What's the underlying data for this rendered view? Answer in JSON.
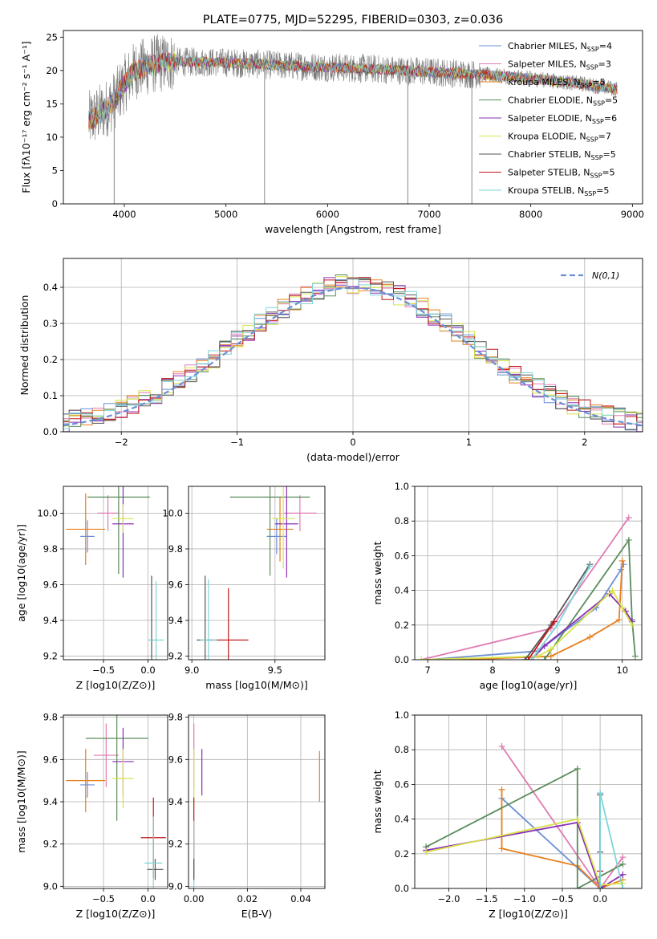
{
  "title": "PLATE=0775, MJD=52295, FIBERID=0303, z=0.036",
  "colors": {
    "Chabrier MILES": "#6a8fd6",
    "Salpeter MILES": "#e07bb3",
    "Kroupa MILES": "#e6801f",
    "Chabrier ELODIE": "#5a8c5a",
    "Salpeter ELODIE": "#8a2eb5",
    "Kroupa ELODIE": "#d8e34a",
    "Chabrier STELIB": "#555555",
    "Salpeter STELIB": "#c01818",
    "Kroupa STELIB": "#7fd4d8",
    "normal": "#6a8fd6"
  },
  "legend_spectrum": [
    {
      "label": "Chabrier MILES, N",
      "sub": "SSP",
      "tail": "=4"
    },
    {
      "label": "Salpeter MILES, N",
      "sub": "SSP",
      "tail": "=3"
    },
    {
      "label": "Kroupa MILES, N",
      "sub": "SSP",
      "tail": "=5"
    },
    {
      "label": "Chabrier ELODIE, N",
      "sub": "SSP",
      "tail": "=5"
    },
    {
      "label": "Salpeter ELODIE, N",
      "sub": "SSP",
      "tail": "=6"
    },
    {
      "label": "Kroupa ELODIE, N",
      "sub": "SSP",
      "tail": "=7"
    },
    {
      "label": "Chabrier STELIB, N",
      "sub": "SSP",
      "tail": "=5"
    },
    {
      "label": "Salpeter STELIB, N",
      "sub": "SSP",
      "tail": "=5"
    },
    {
      "label": "Kroupa STELIB, N",
      "sub": "SSP",
      "tail": "=5"
    }
  ],
  "chart_data": [
    {
      "type": "line",
      "panel": "spectrum",
      "xlabel": "wavelength [Angstrom, rest frame]",
      "ylabel": "Flux [fλ10⁻¹⁷ erg cm⁻² s⁻¹ A⁻¹]",
      "xlim": [
        3400,
        9100
      ],
      "ylim": [
        0,
        26
      ],
      "xticks": [
        4000,
        5000,
        6000,
        7000,
        8000,
        9000
      ],
      "yticks": [
        0,
        5,
        10,
        15,
        20,
        25
      ],
      "continuum": [
        [
          3650,
          12.5
        ],
        [
          3800,
          14
        ],
        [
          3900,
          15.5
        ],
        [
          4000,
          18
        ],
        [
          4100,
          20
        ],
        [
          4300,
          21
        ],
        [
          4500,
          21.3
        ],
        [
          5000,
          21.2
        ],
        [
          5500,
          20.8
        ],
        [
          6000,
          20.5
        ],
        [
          6500,
          20.2
        ],
        [
          7000,
          19.8
        ],
        [
          7500,
          19.4
        ],
        [
          8000,
          18.8
        ],
        [
          8500,
          18.0
        ],
        [
          8850,
          17.2
        ]
      ],
      "dropouts": [
        [
          3900,
          0
        ],
        [
          5380,
          0
        ],
        [
          6790,
          0
        ],
        [
          7420,
          0
        ]
      ]
    },
    {
      "type": "bar",
      "panel": "residual-histogram",
      "xlabel": "(data-model)/error",
      "ylabel": "Normed distribution",
      "xlim": [
        -2.5,
        2.5
      ],
      "ylim": [
        0,
        0.48
      ],
      "xticks": [
        -2,
        -1,
        0,
        1,
        2
      ],
      "yticks": [
        0.0,
        0.1,
        0.2,
        0.3,
        0.4
      ],
      "bin_width": 0.1,
      "legend": "N(0,1)"
    },
    {
      "type": "scatter",
      "panel": "age-vs-Z",
      "xlabel": "Z [log10(Z/Z⊙)]",
      "ylabel": "age [log10(age/yr)]",
      "xlim": [
        -0.95,
        0.22
      ],
      "ylim": [
        9.18,
        10.15
      ],
      "xticks": [
        -0.5,
        0.0
      ],
      "yticks": [
        9.2,
        9.4,
        9.6,
        9.8,
        10.0
      ],
      "points": [
        {
          "model": "Chabrier MILES",
          "x": -0.68,
          "y": 9.87,
          "xerr": 0.08,
          "yerr": 0.09
        },
        {
          "model": "Kroupa MILES",
          "x": -0.7,
          "y": 9.91,
          "xerr": 0.22,
          "yerr": 0.2
        },
        {
          "model": "Salpeter MILES",
          "x": -0.45,
          "y": 10.0,
          "xerr": 0.12,
          "yerr": 0.1
        },
        {
          "model": "Chabrier ELODIE",
          "x": -0.33,
          "y": 10.09,
          "xerr": 0.35,
          "yerr": 0.43
        },
        {
          "model": "Salpeter ELODIE",
          "x": -0.28,
          "y": 9.94,
          "xerr": 0.12,
          "yerr": 0.3
        },
        {
          "model": "Kroupa ELODIE",
          "x": -0.28,
          "y": 9.97,
          "xerr": 0.12,
          "yerr": 0.08
        },
        {
          "model": "Chabrier STELIB",
          "x": 0.04,
          "y": 9.29,
          "xerr": 0.02,
          "yerr": 0.36
        },
        {
          "model": "Kroupa STELIB",
          "x": 0.09,
          "y": 9.29,
          "xerr": 0.09,
          "yerr": 0.33
        }
      ]
    },
    {
      "type": "scatter",
      "panel": "age-vs-mass",
      "xlabel": "mass [log10(M/M⊙)]",
      "ylabel": "",
      "xlim": [
        8.98,
        9.8
      ],
      "ylim": [
        9.18,
        10.15
      ],
      "xticks": [
        9.0,
        9.5
      ],
      "yticks": [
        9.2,
        9.4,
        9.6,
        9.8,
        10.0
      ],
      "points": [
        {
          "model": "Chabrier MILES",
          "x": 9.51,
          "y": 9.87,
          "xerr": 0.06,
          "yerr": 0.1
        },
        {
          "model": "Salpeter MILES",
          "x": 9.65,
          "y": 10.0,
          "xerr": 0.1,
          "yerr": 0.1
        },
        {
          "model": "Kroupa MILES",
          "x": 9.53,
          "y": 9.91,
          "xerr": 0.08,
          "yerr": 0.18
        },
        {
          "model": "Chabrier ELODIE",
          "x": 9.47,
          "y": 10.09,
          "xerr": 0.24,
          "yerr": 0.44
        },
        {
          "model": "Salpeter ELODIE",
          "x": 9.57,
          "y": 9.94,
          "xerr": 0.07,
          "yerr": 0.3
        },
        {
          "model": "Kroupa ELODIE",
          "x": 9.55,
          "y": 9.97,
          "xerr": 0.07,
          "yerr": 0.28
        },
        {
          "model": "Chabrier STELIB",
          "x": 9.08,
          "y": 9.29,
          "xerr": 0.05,
          "yerr": 0.36
        },
        {
          "model": "Salpeter STELIB",
          "x": 9.22,
          "y": 9.29,
          "xerr": 0.12,
          "yerr": 0.29
        },
        {
          "model": "Kroupa STELIB",
          "x": 9.1,
          "y": 9.29,
          "xerr": 0.05,
          "yerr": 0.34
        }
      ]
    },
    {
      "type": "line",
      "panel": "weight-vs-age",
      "xlabel": "age [log10(age/yr)]",
      "ylabel": "mass weight",
      "xlim": [
        6.8,
        10.3
      ],
      "ylim": [
        0,
        1.0
      ],
      "xticks": [
        7,
        8,
        9,
        10
      ],
      "yticks": [
        0.0,
        0.2,
        0.4,
        0.6,
        0.8,
        1.0
      ],
      "series": [
        {
          "model": "Chabrier MILES",
          "x": [
            7.0,
            8.7,
            9.6,
            9.98,
            10.02
          ],
          "y": [
            0.0,
            0.05,
            0.3,
            0.52,
            0.55
          ]
        },
        {
          "model": "Salpeter MILES",
          "x": [
            6.9,
            8.9,
            10.1
          ],
          "y": [
            0.0,
            0.18,
            0.82
          ]
        },
        {
          "model": "Kroupa MILES",
          "x": [
            7.5,
            8.9,
            9.5,
            9.95,
            10.0
          ],
          "y": [
            0.0,
            0.02,
            0.13,
            0.23,
            0.57
          ]
        },
        {
          "model": "Chabrier ELODIE",
          "x": [
            8.8,
            10.1,
            10.15,
            10.2
          ],
          "y": [
            0.0,
            0.69,
            0.23,
            0.02
          ]
        },
        {
          "model": "Salpeter ELODIE",
          "x": [
            8.6,
            8.8,
            9.8,
            10.05,
            10.15
          ],
          "y": [
            0.0,
            0.08,
            0.38,
            0.28,
            0.22
          ]
        },
        {
          "model": "Kroupa ELODIE",
          "x": [
            6.9,
            8.7,
            8.9,
            9.85,
            10.0,
            10.15
          ],
          "y": [
            0.0,
            0.02,
            0.06,
            0.4,
            0.3,
            0.2
          ]
        },
        {
          "model": "Chabrier STELIB",
          "x": [
            8.5,
            8.9,
            9.5
          ],
          "y": [
            0.0,
            0.2,
            0.55
          ]
        },
        {
          "model": "Salpeter STELIB",
          "x": [
            8.55,
            8.95
          ],
          "y": [
            0.0,
            0.22
          ]
        },
        {
          "model": "Kroupa STELIB",
          "x": [
            8.6,
            9.0,
            9.5
          ],
          "y": [
            0.0,
            0.2,
            0.54
          ]
        }
      ]
    },
    {
      "type": "scatter",
      "panel": "mass-vs-Z",
      "xlabel": "Z [log10(Z/Z⊙)]",
      "ylabel": "mass [log10(M/M⊙)]",
      "xlim": [
        -0.95,
        0.22
      ],
      "ylim": [
        8.99,
        9.81
      ],
      "xticks": [
        -0.5,
        0.0
      ],
      "yticks": [
        9.0,
        9.2,
        9.4,
        9.6,
        9.8
      ],
      "points": [
        {
          "model": "Chabrier MILES",
          "x": -0.68,
          "y": 9.48,
          "xerr": 0.08,
          "yerr": 0.06
        },
        {
          "model": "Kroupa MILES",
          "x": -0.7,
          "y": 9.5,
          "xerr": 0.22,
          "yerr": 0.15
        },
        {
          "model": "Salpeter MILES",
          "x": -0.47,
          "y": 9.62,
          "xerr": 0.14,
          "yerr": 0.15
        },
        {
          "model": "Chabrier ELODIE",
          "x": -0.35,
          "y": 9.7,
          "xerr": 0.35,
          "yerr": 0.39
        },
        {
          "model": "Salpeter ELODIE",
          "x": -0.28,
          "y": 9.59,
          "xerr": 0.12,
          "yerr": 0.16
        },
        {
          "model": "Kroupa ELODIE",
          "x": -0.28,
          "y": 9.51,
          "xerr": 0.12,
          "yerr": 0.14
        },
        {
          "model": "Chabrier STELIB",
          "x": 0.08,
          "y": 9.08,
          "xerr": 0.09,
          "yerr": 0.05
        },
        {
          "model": "Salpeter STELIB",
          "x": 0.06,
          "y": 9.23,
          "xerr": 0.14,
          "yerr": 0.19
        },
        {
          "model": "Kroupa STELIB",
          "x": 0.06,
          "y": 9.11,
          "xerr": 0.1,
          "yerr": 0.22
        }
      ]
    },
    {
      "type": "scatter",
      "panel": "mass-vs-EBV",
      "xlabel": "E(B-V)",
      "ylabel": "",
      "xlim": [
        -0.002,
        0.049
      ],
      "ylim": [
        8.99,
        9.81
      ],
      "xticks": [
        0.0,
        0.02,
        0.04
      ],
      "yticks": [
        9.0,
        9.2,
        9.4,
        9.6,
        9.8
      ],
      "points": [
        {
          "model": "Salpeter MILES",
          "x": 0.0,
          "y": 9.62,
          "yerr": 0.15
        },
        {
          "model": "Kroupa ELODIE",
          "x": 0.0,
          "y": 9.51,
          "yerr": 0.14
        },
        {
          "model": "Salpeter ELODIE",
          "x": 0.003,
          "y": 9.54,
          "yerr": 0.11
        },
        {
          "model": "Kroupa MILES",
          "x": 0.047,
          "y": 9.52,
          "yerr": 0.12
        },
        {
          "model": "Salpeter STELIB",
          "x": 0.0,
          "y": 9.23,
          "yerr": 0.19
        },
        {
          "model": "Kroupa STELIB",
          "x": 0.0,
          "y": 9.11,
          "yerr": 0.2
        },
        {
          "model": "Chabrier STELIB",
          "x": 0.0,
          "y": 9.08,
          "yerr": 0.05
        }
      ]
    },
    {
      "type": "line",
      "panel": "weight-vs-Z",
      "xlabel": "Z [log10(Z/Z⊙)]",
      "ylabel": "mass weight",
      "xlim": [
        -2.45,
        0.55
      ],
      "ylim": [
        0,
        1.0
      ],
      "xticks": [
        -2.0,
        -1.5,
        -1.0,
        -0.5,
        0.0
      ],
      "yticks": [
        0.0,
        0.2,
        0.4,
        0.6,
        0.8,
        1.0
      ],
      "series": [
        {
          "model": "Chabrier MILES",
          "x": [
            -1.3,
            0.0,
            0.0
          ],
          "y": [
            0.52,
            0.0,
            0.55
          ]
        },
        {
          "model": "Salpeter MILES",
          "x": [
            -1.3,
            0.0,
            0.3
          ],
          "y": [
            0.82,
            0.0,
            0.18
          ]
        },
        {
          "model": "Kroupa MILES",
          "x": [
            -1.3,
            -1.3,
            -0.3,
            0.0,
            0.3
          ],
          "y": [
            0.57,
            0.23,
            0.13,
            0.0,
            0.05
          ]
        },
        {
          "model": "Chabrier ELODIE",
          "x": [
            -2.3,
            -0.3,
            -0.3,
            0.3
          ],
          "y": [
            0.24,
            0.69,
            0.0,
            0.14
          ]
        },
        {
          "model": "Salpeter ELODIE",
          "x": [
            -2.3,
            -0.3,
            0.0,
            0.3
          ],
          "y": [
            0.22,
            0.38,
            0.0,
            0.08
          ]
        },
        {
          "model": "Kroupa ELODIE",
          "x": [
            -2.3,
            -0.3,
            0.0,
            0.3
          ],
          "y": [
            0.21,
            0.4,
            0.02,
            0.03
          ]
        },
        {
          "model": "Chabrier STELIB",
          "x": [
            0.0,
            0.0,
            0.0
          ],
          "y": [
            0.0,
            0.21,
            0.54
          ]
        },
        {
          "model": "Salpeter STELIB",
          "x": [
            0.0,
            0.0
          ],
          "y": [
            0.0,
            0.1
          ]
        },
        {
          "model": "Kroupa STELIB",
          "x": [
            0.0,
            0.0,
            0.3
          ],
          "y": [
            0.0,
            0.55,
            0.0
          ]
        }
      ]
    }
  ]
}
